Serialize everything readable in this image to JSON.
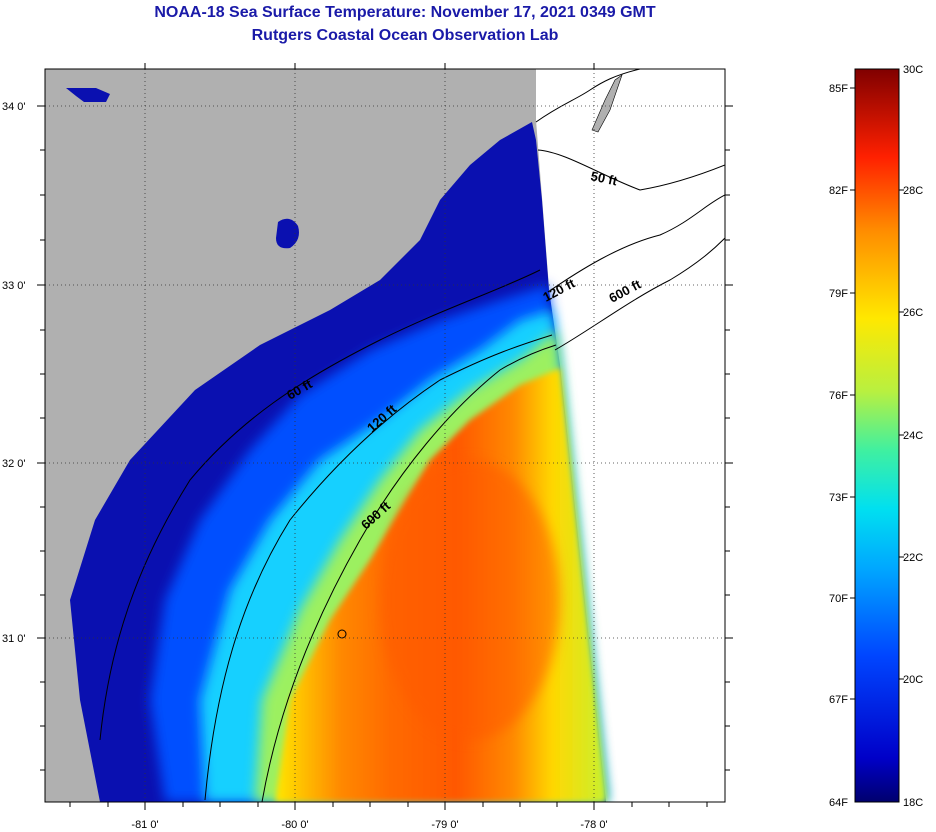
{
  "title": "NOAA-18 Sea Surface Temperature:  November 17, 2021 0349 GMT",
  "subtitle": "Rutgers Coastal Ocean Observation Lab",
  "map": {
    "lat_labels": [
      "34 0'",
      "33 0'",
      "32 0'",
      "31 0'"
    ],
    "lon_labels": [
      "-81 0'",
      "-80 0'",
      "-79 0'",
      "-78 0'"
    ],
    "contour_labels": [
      "50 ft",
      "120 ft",
      "600 ft",
      "60 ft",
      "120 ft",
      "600 ft"
    ]
  },
  "colorbar": {
    "fahrenheit_labels": [
      "85F",
      "82F",
      "79F",
      "76F",
      "73F",
      "70F",
      "67F",
      "64F"
    ],
    "celsius_labels": [
      "30C",
      "28C",
      "26C",
      "24C",
      "22C",
      "20C",
      "18C"
    ]
  },
  "colors": {
    "land": "#b0b0b0",
    "title": "#1a1aa8"
  }
}
